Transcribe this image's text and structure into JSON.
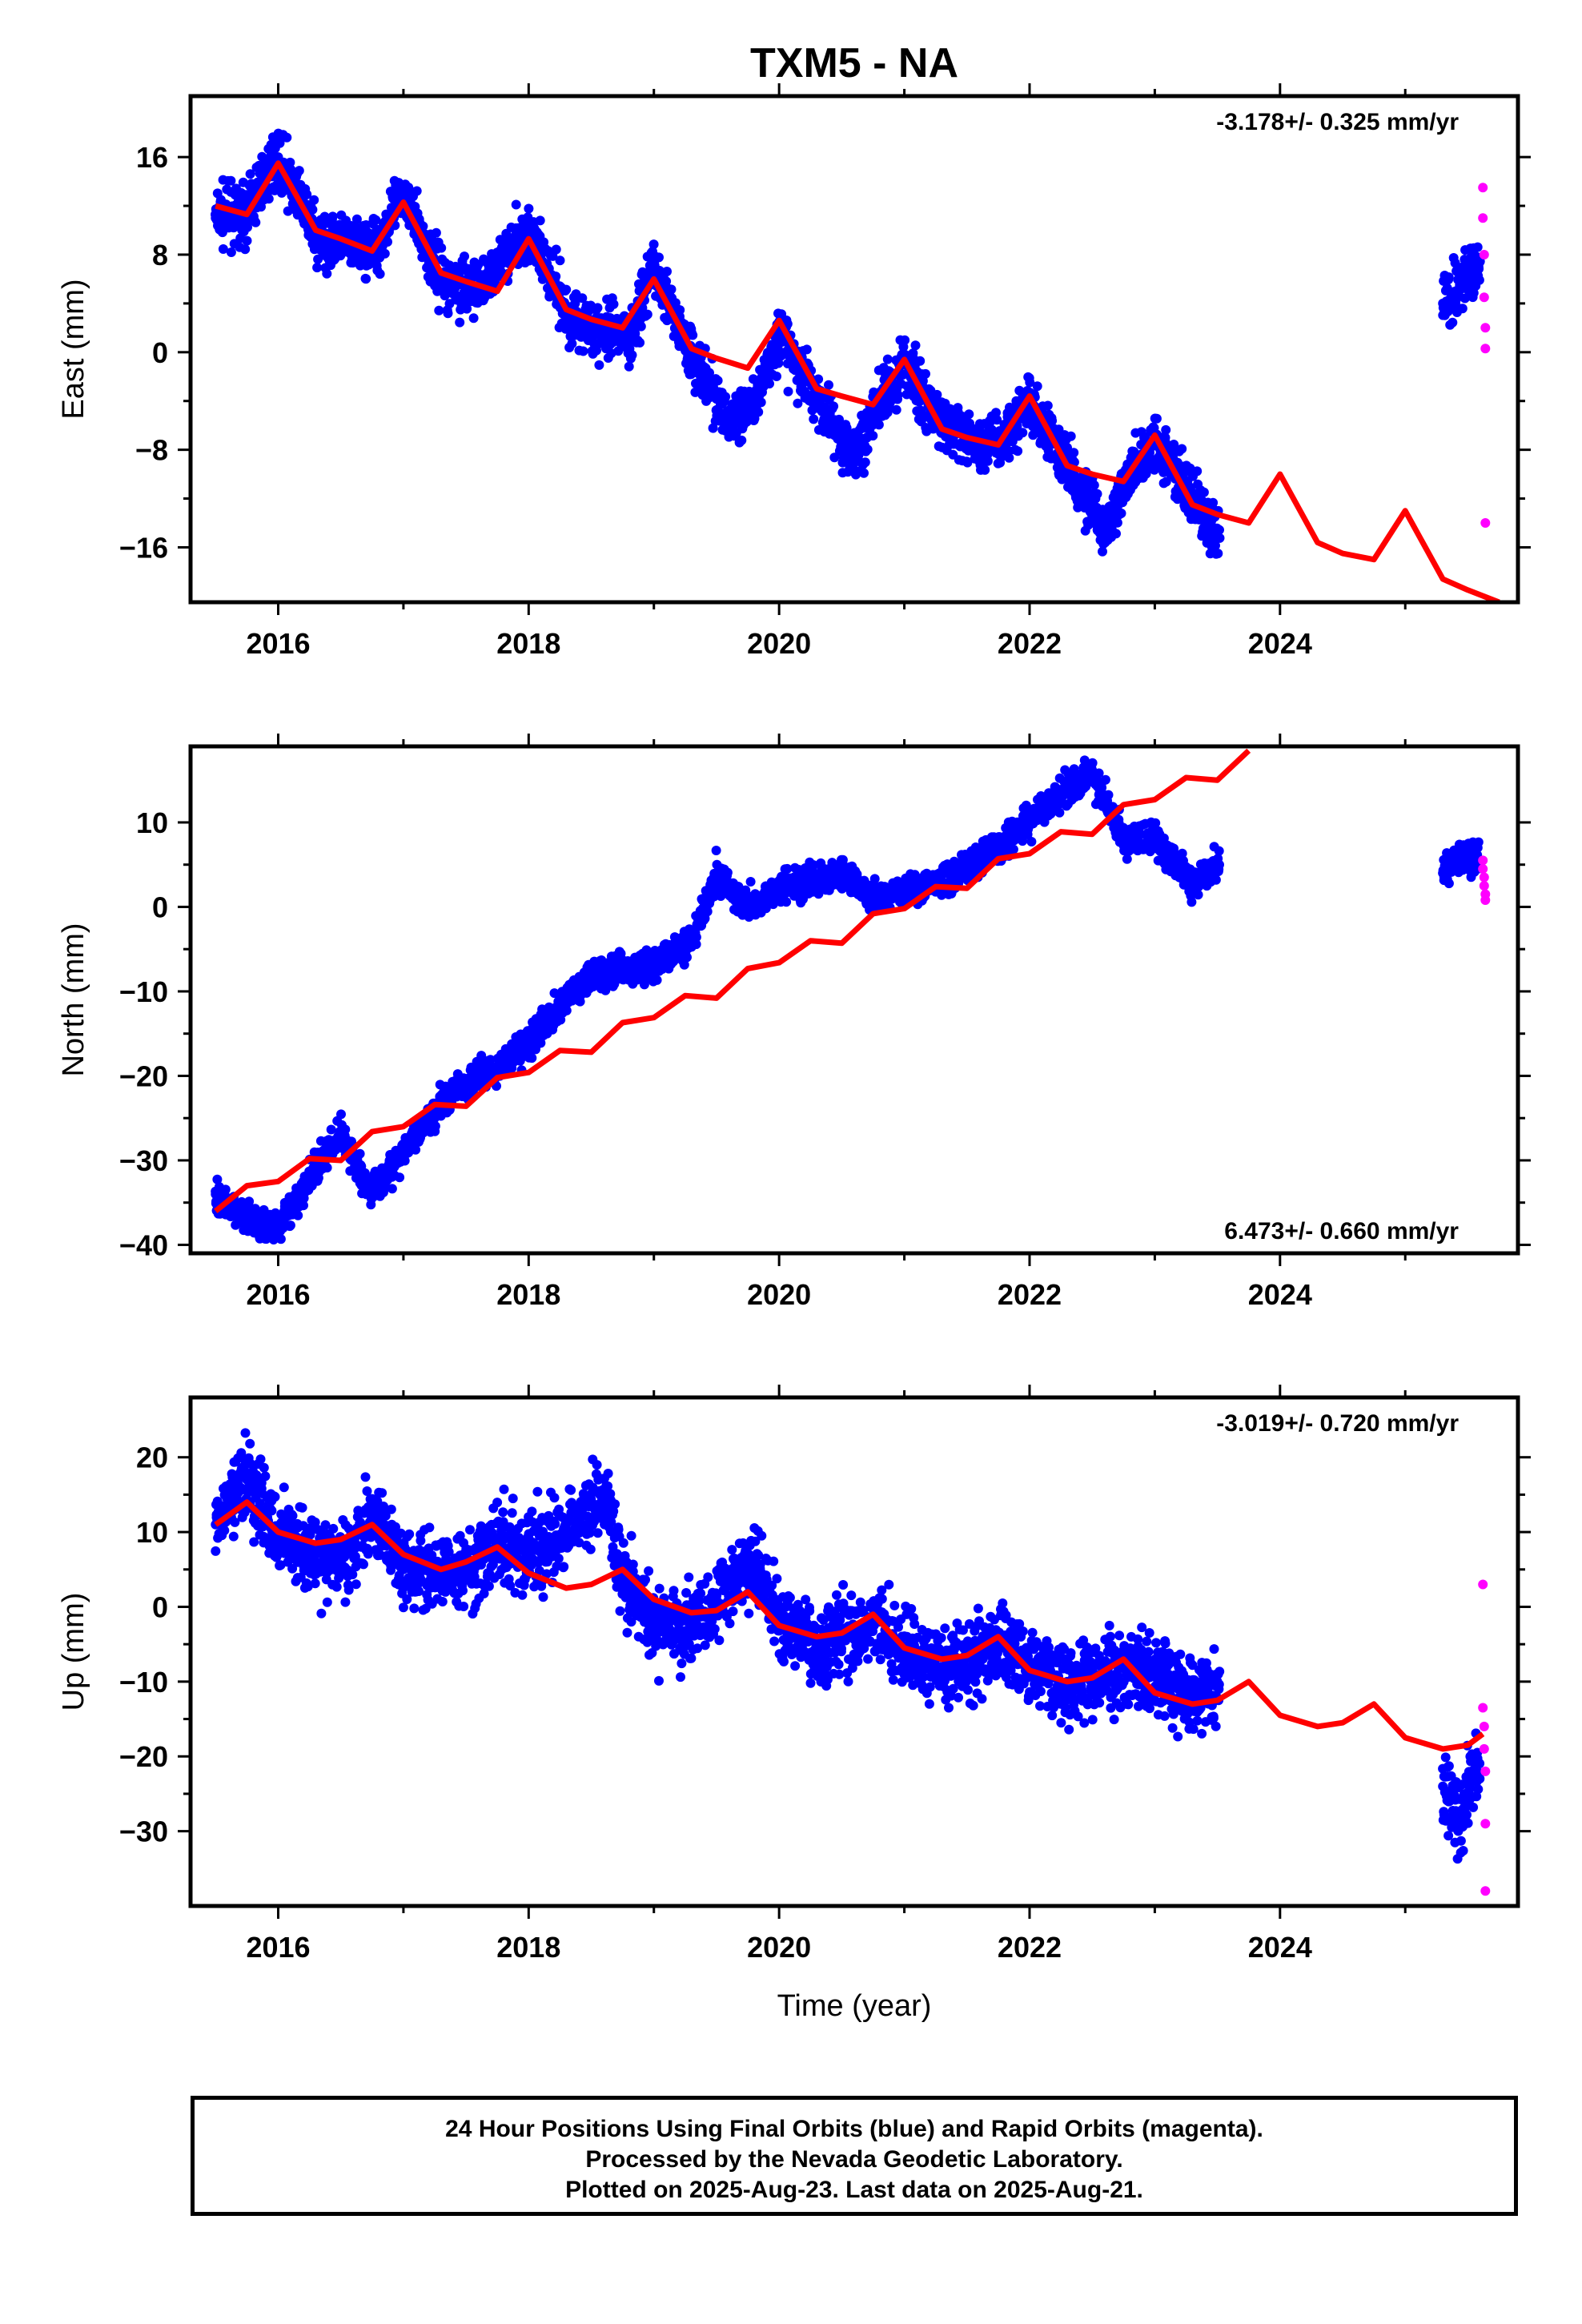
{
  "title": "TXM5 - NA",
  "colors": {
    "final_orbits": "#0000ff",
    "rapid_orbits": "#ff00ff",
    "model": "#ff0000",
    "frame": "#000000"
  },
  "caption": {
    "line1": "24 Hour Positions Using Final Orbits (blue) and Rapid Orbits (magenta).",
    "line2": "Processed by the Nevada Geodetic Laboratory.",
    "line3": "Plotted on 2025-Aug-23. Last data on 2025-Aug-21."
  },
  "chart_data": [
    {
      "type": "scatter",
      "component": "east",
      "ylabel": "East (mm)",
      "xlabel": "",
      "xlim": [
        2015.3,
        2025.9
      ],
      "ylim": [
        -20.5,
        21
      ],
      "xticks": [
        2016,
        2018,
        2020,
        2022,
        2024
      ],
      "yticks": [
        -16,
        -8,
        0,
        8,
        16
      ],
      "rate_label": "-3.178+/- 0.325 mm/yr",
      "rate_label_position": "top-right",
      "series": [
        {
          "name": "Final Orbits (blue)",
          "x": [
            2015.5,
            2015.75,
            2016.0,
            2016.3,
            2016.6,
            2016.8,
            2017.0,
            2017.3,
            2017.6,
            2017.8,
            2018.0,
            2018.3,
            2018.6,
            2018.8,
            2019.0,
            2019.3,
            2019.6,
            2019.8,
            2020.0,
            2020.3,
            2020.6,
            2020.8,
            2021.0,
            2021.3,
            2021.6,
            2021.8,
            2022.0,
            2022.3,
            2022.6,
            2022.8,
            2023.0,
            2023.3,
            2023.5,
            2025.3,
            2025.45,
            2025.55
          ],
          "y": [
            11,
            11.5,
            16,
            9.5,
            8.5,
            9,
            13,
            6,
            5,
            8,
            10,
            3,
            1.5,
            1,
            7,
            0,
            -5.5,
            -4,
            1,
            -3.5,
            -8.5,
            -4.5,
            -1,
            -6,
            -7.5,
            -7,
            -4,
            -9,
            -15,
            -10,
            -7,
            -12,
            -15,
            4,
            5.5,
            7
          ]
        },
        {
          "name": "Rapid Orbits (magenta)",
          "x": [
            2025.62,
            2025.62,
            2025.63,
            2025.63,
            2025.64,
            2025.64,
            2025.64
          ],
          "y": [
            13.5,
            11,
            8,
            4.5,
            2,
            0.3,
            -14
          ]
        },
        {
          "name": "Model",
          "x": [
            2015.5,
            2015.75,
            2016.0,
            2016.3,
            2016.5,
            2016.75,
            2017.0,
            2017.3,
            2017.5,
            2017.75,
            2018.0,
            2018.3,
            2018.5,
            2018.75,
            2019.0,
            2019.3,
            2019.5,
            2019.75,
            2020.0,
            2020.3,
            2020.5,
            2020.75,
            2021.0,
            2021.3,
            2021.5,
            2021.75,
            2022.0,
            2022.3,
            2022.5,
            2022.75,
            2023.0,
            2023.3,
            2023.5,
            2023.75,
            2024.0,
            2024.3,
            2024.5,
            2024.75,
            2025.0,
            2025.3,
            2025.5,
            2025.75
          ],
          "y": [
            12,
            11.3,
            15.5,
            10,
            9.3,
            8.3,
            12.3,
            6.5,
            5.8,
            5,
            9.3,
            3.5,
            2.7,
            2,
            6,
            0.3,
            -0.5,
            -1.3,
            2.6,
            -3,
            -3.6,
            -4.3,
            -0.6,
            -6.3,
            -7,
            -7.6,
            -3.6,
            -9.3,
            -10,
            -10.6,
            -6.8,
            -12.5,
            -13.3,
            -14,
            -10,
            -15.6,
            -16.5,
            -17,
            -13,
            -18.6,
            -19.5,
            -20.5
          ]
        }
      ]
    },
    {
      "type": "scatter",
      "component": "north",
      "ylabel": "North (mm)",
      "xlabel": "",
      "xlim": [
        2015.3,
        2025.9
      ],
      "ylim": [
        -41,
        19
      ],
      "xticks": [
        2016,
        2018,
        2020,
        2022,
        2024
      ],
      "yticks": [
        -40,
        -30,
        -20,
        -10,
        0,
        10
      ],
      "rate_label": "6.473+/- 0.660 mm/yr",
      "rate_label_position": "bottom-right",
      "series": [
        {
          "name": "Final Orbits (blue)",
          "x": [
            2015.5,
            2015.75,
            2016.0,
            2016.3,
            2016.5,
            2016.75,
            2017.0,
            2017.3,
            2017.5,
            2017.75,
            2018.0,
            2018.3,
            2018.5,
            2018.75,
            2019.0,
            2019.3,
            2019.5,
            2019.75,
            2020.0,
            2020.3,
            2020.5,
            2020.75,
            2021.0,
            2021.3,
            2021.5,
            2021.75,
            2022.0,
            2022.3,
            2022.5,
            2022.75,
            2023.0,
            2023.3,
            2023.5,
            2025.3,
            2025.45,
            2025.55
          ],
          "y": [
            -34,
            -37,
            -38,
            -31,
            -27,
            -34,
            -29,
            -23,
            -21,
            -19,
            -16,
            -11,
            -8,
            -7.5,
            -7,
            -4,
            4,
            0,
            2,
            3.5,
            4,
            1,
            2,
            3,
            5,
            7,
            10,
            14,
            16,
            8,
            8,
            3,
            5,
            4,
            6,
            5.5
          ]
        },
        {
          "name": "Rapid Orbits (magenta)",
          "x": [
            2025.62,
            2025.62,
            2025.63,
            2025.63,
            2025.64,
            2025.64
          ],
          "y": [
            5.5,
            4.5,
            3.5,
            2.5,
            1.5,
            0.8
          ]
        },
        {
          "name": "Model",
          "x": [
            2015.5,
            2015.75,
            2016.0,
            2016.25,
            2016.5,
            2016.75,
            2017.0,
            2017.25,
            2017.5,
            2017.75,
            2018.0,
            2018.25,
            2018.5,
            2018.75,
            2019.0,
            2019.25,
            2019.5,
            2019.75,
            2020.0,
            2020.25,
            2020.5,
            2020.75,
            2021.0,
            2021.25,
            2021.5,
            2021.75,
            2022.0,
            2022.25,
            2022.5,
            2022.75,
            2023.0,
            2023.25,
            2023.5,
            2023.75
          ],
          "y": [
            -36,
            -33,
            -32.5,
            -29.8,
            -30,
            -26.6,
            -26,
            -23.4,
            -23.6,
            -20.2,
            -19.6,
            -17,
            -17.2,
            -13.7,
            -13.1,
            -10.5,
            -10.8,
            -7.3,
            -6.6,
            -4,
            -4.3,
            -0.8,
            -0.2,
            2.4,
            2.2,
            5.7,
            6.3,
            8.9,
            8.6,
            12.1,
            12.7,
            15.3,
            15,
            18.5
          ]
        }
      ]
    },
    {
      "type": "scatter",
      "component": "up",
      "ylabel": "Up (mm)",
      "xlabel": "Time (year)",
      "xlim": [
        2015.3,
        2025.9
      ],
      "ylim": [
        -40,
        28
      ],
      "xticks": [
        2016,
        2018,
        2020,
        2022,
        2024
      ],
      "yticks": [
        -30,
        -20,
        -10,
        0,
        10,
        20
      ],
      "rate_label": "-3.019+/- 0.720 mm/yr",
      "rate_label_position": "top-right",
      "series": [
        {
          "name": "Final Orbits (blue)",
          "x": [
            2015.5,
            2015.75,
            2016.0,
            2016.3,
            2016.6,
            2016.8,
            2017.0,
            2017.3,
            2017.6,
            2017.8,
            2018.0,
            2018.3,
            2018.6,
            2018.8,
            2019.0,
            2019.3,
            2019.6,
            2019.8,
            2020.0,
            2020.3,
            2020.6,
            2020.8,
            2021.0,
            2021.3,
            2021.6,
            2021.8,
            2022.0,
            2022.3,
            2022.6,
            2022.8,
            2023.0,
            2023.3,
            2023.5,
            2025.3,
            2025.45,
            2025.55
          ],
          "y": [
            11,
            17,
            10,
            6,
            8,
            12,
            5,
            4,
            6,
            9,
            7,
            11,
            14,
            3,
            -2,
            -3,
            3,
            6,
            -2,
            -5,
            -4,
            -2,
            -6,
            -8,
            -7,
            -5,
            -8,
            -10,
            -9,
            -8,
            -9,
            -12,
            -10,
            -24,
            -28,
            -22
          ]
        },
        {
          "name": "Rapid Orbits (magenta)",
          "x": [
            2025.62,
            2025.62,
            2025.63,
            2025.63,
            2025.64,
            2025.64,
            2025.64
          ],
          "y": [
            3,
            -13.5,
            -16,
            -19,
            -22,
            -29,
            -38
          ]
        },
        {
          "name": "Model",
          "x": [
            2015.5,
            2015.75,
            2016.0,
            2016.3,
            2016.5,
            2016.75,
            2017.0,
            2017.3,
            2017.5,
            2017.75,
            2018.0,
            2018.3,
            2018.5,
            2018.75,
            2019.0,
            2019.3,
            2019.5,
            2019.75,
            2020.0,
            2020.3,
            2020.5,
            2020.75,
            2021.0,
            2021.3,
            2021.5,
            2021.75,
            2022.0,
            2022.3,
            2022.5,
            2022.75,
            2023.0,
            2023.3,
            2023.5,
            2023.75,
            2024.0,
            2024.3,
            2024.5,
            2024.75,
            2025.0,
            2025.3,
            2025.5,
            2025.62
          ],
          "y": [
            11,
            14,
            10,
            8.5,
            9,
            11,
            7,
            5,
            6,
            8,
            4.5,
            2.5,
            3,
            5,
            1,
            -0.8,
            -0.5,
            2,
            -2.5,
            -4,
            -3.5,
            -1,
            -5.5,
            -7,
            -6.5,
            -4,
            -8.5,
            -10,
            -9.5,
            -7,
            -11.5,
            -13,
            -12.5,
            -10,
            -14.5,
            -16,
            -15.5,
            -13,
            -17.5,
            -19,
            -18.5,
            -17
          ]
        }
      ]
    }
  ]
}
